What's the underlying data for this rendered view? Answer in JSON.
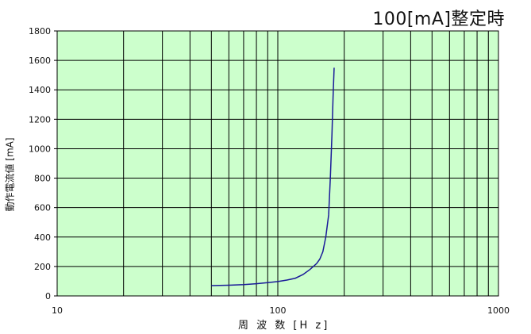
{
  "chart_data": {
    "type": "line",
    "title": "100[mA]整定時",
    "xlabel": "周 波 数 [H z]",
    "ylabel": "動作電流値 [mA]",
    "xscale": "log",
    "xlim": [
      10,
      1000
    ],
    "ylim": [
      0,
      1800
    ],
    "x_ticks": [
      "10",
      "100",
      "1000"
    ],
    "y_ticks": [
      "0",
      "200",
      "400",
      "600",
      "800",
      "1000",
      "1200",
      "1400",
      "1600",
      "1800"
    ],
    "grid": true,
    "legend": "none",
    "colors": {
      "plot_bg": "#ccffcc",
      "grid": "#000000",
      "line": "#1a1a99"
    },
    "series": [
      {
        "x": [
          50,
          60,
          70,
          80,
          90,
          100,
          110,
          120,
          130,
          140,
          150,
          155,
          160,
          165,
          170,
          173,
          176,
          178,
          180
        ],
        "y": [
          70,
          73,
          77,
          83,
          90,
          98,
          108,
          120,
          145,
          180,
          220,
          250,
          300,
          400,
          550,
          800,
          1100,
          1350,
          1550
        ]
      }
    ]
  }
}
